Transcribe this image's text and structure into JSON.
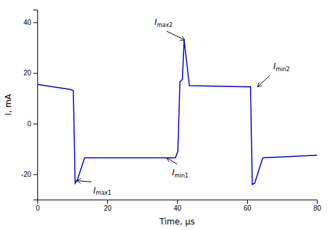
{
  "chart_data": {
    "type": "line",
    "xlabel": "Time, μs",
    "ylabel": "I, mA",
    "xlim": [
      0,
      80
    ],
    "ylim": [
      -30,
      45
    ],
    "xticks": [
      0,
      20,
      40,
      60,
      80
    ],
    "yticks": [
      -20,
      0,
      20,
      40
    ],
    "color": "#0000cc",
    "x": [
      0,
      9.5,
      9.5,
      10.3,
      10.3,
      10.8,
      10.8,
      11.5,
      11.5,
      13.5,
      13.5,
      39.5,
      39.5,
      40.2,
      40.2,
      40.8,
      40.8,
      41.5,
      41.5,
      42.0,
      42.0,
      43.5,
      43.5,
      61.0,
      61.0,
      61.5,
      61.5,
      62.2,
      62.2,
      64.5,
      64.5,
      80
    ],
    "values": [
      15.5,
      13.5,
      13.5,
      13.0,
      13.0,
      -23.5,
      -23.5,
      -22.0,
      -22.0,
      -13.5,
      -13.5,
      -13.5,
      -13.5,
      -11.0,
      -11.0,
      16.5,
      16.5,
      17.5,
      17.5,
      33.0,
      33.0,
      15.0,
      15.0,
      14.5,
      14.5,
      -24.0,
      -24.0,
      -23.5,
      -23.5,
      -13.5,
      -13.5,
      -12.5
    ],
    "annotations": [
      {
        "text": "Imax2",
        "xy": [
          42.2,
          33.0
        ],
        "xytext": [
          33.5,
          37.5
        ],
        "arrow_start": [
          37.0,
          36.5
        ]
      },
      {
        "text": "Imin2",
        "xy": [
          63.0,
          14.5
        ],
        "xytext": [
          67.5,
          20.0
        ],
        "arrow_start": [
          66.5,
          19.0
        ]
      },
      {
        "text": "Imax1",
        "xy": [
          11.2,
          -22.5
        ],
        "xytext": [
          16.0,
          -24.5
        ],
        "arrow_start": [
          15.5,
          -23.0
        ]
      },
      {
        "text": "Imin1",
        "xy": [
          37.0,
          -13.5
        ],
        "xytext": [
          38.5,
          -17.5
        ],
        "arrow_start": [
          40.0,
          -16.0
        ]
      }
    ]
  }
}
